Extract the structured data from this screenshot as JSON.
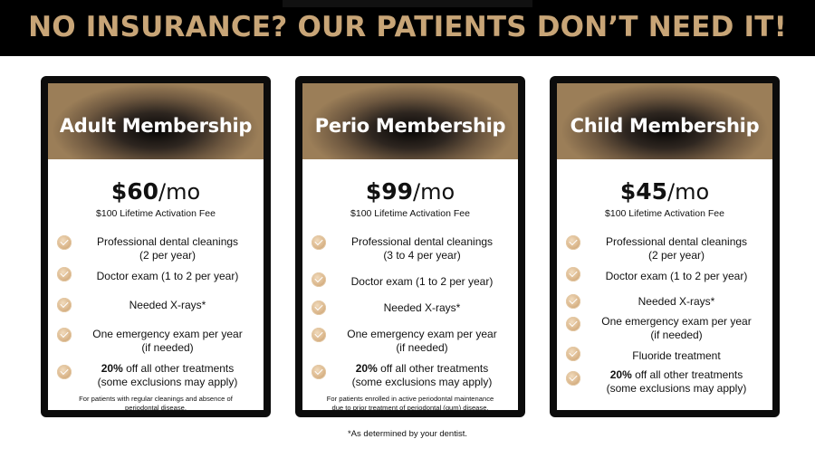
{
  "banner": {
    "title": "NO INSURANCE? OUR PATIENTS DON’T NEED IT!"
  },
  "colors": {
    "gold": "#c8a577",
    "black": "#000000",
    "check": "#d9b488"
  },
  "cards": [
    {
      "title": "Adult Membership",
      "price": "$60",
      "per": "/mo",
      "fee": "$100 Lifetime Activation Fee",
      "features": [
        {
          "l1": "Professional dental cleanings",
          "l2": "(2 per year)"
        },
        {
          "l1": "Doctor exam (1 to 2 per year)",
          "l2": ""
        },
        {
          "l1": "Needed X-rays*",
          "l2": ""
        },
        {
          "l1": "One emergency exam per year",
          "l2": "(if needed)"
        },
        {
          "bold": "20%",
          "l1": " off all other treatments",
          "l2": "(some exclusions may apply)"
        }
      ],
      "note1": "For patients with regular cleanings and absence of",
      "note2": "periodontal disease."
    },
    {
      "title": "Perio Membership",
      "price": "$99",
      "per": "/mo",
      "fee": "$100 Lifetime Activation Fee",
      "features": [
        {
          "l1": "Professional dental cleanings",
          "l2": "(3 to 4 per year)"
        },
        {
          "l1": "Doctor exam (1 to 2 per year)",
          "l2": ""
        },
        {
          "l1": "Needed X-rays*",
          "l2": ""
        },
        {
          "l1": "One emergency exam per year",
          "l2": "(if needed)"
        },
        {
          "bold": "20%",
          "l1": " off all other treatments",
          "l2": "(some exclusions may apply)"
        }
      ],
      "note1": "For patients enrolled in active periodontal maintenance",
      "note2": "due to prior treatment of periodontal (gum) disease."
    },
    {
      "title": "Child Membership",
      "price": "$45",
      "per": "/mo",
      "fee": "$100 Lifetime Activation Fee",
      "features": [
        {
          "l1": "Professional dental cleanings",
          "l2": "(2 per year)"
        },
        {
          "l1": "Doctor exam (1 to 2 per year)",
          "l2": ""
        },
        {
          "l1": "Needed X-rays*",
          "l2": ""
        },
        {
          "l1": "One emergency exam per year",
          "l2": "(if needed)"
        },
        {
          "l1": "Fluoride treatment",
          "l2": ""
        },
        {
          "bold": "20%",
          "l1": " off all other treatments",
          "l2": "(some exclusions may apply)"
        }
      ]
    }
  ],
  "footer": "*As determined by your dentist."
}
